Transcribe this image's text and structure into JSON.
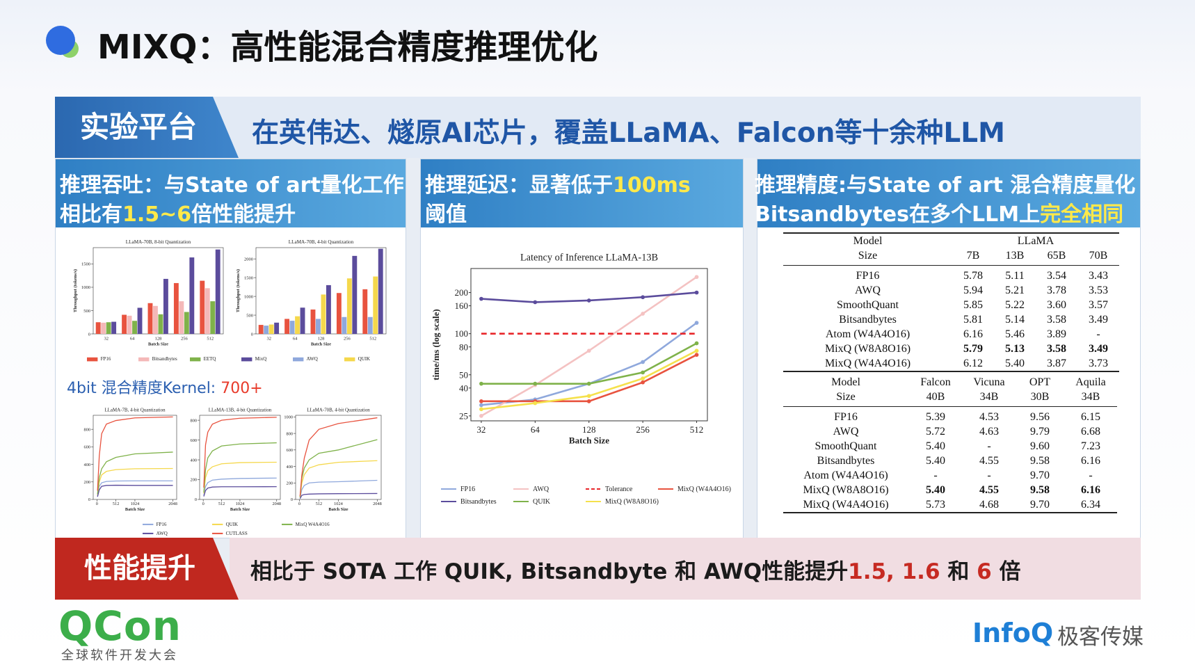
{
  "header": {
    "title": "MIXQ：高性能混合精度推理优化"
  },
  "banner": {
    "label": "实验平台",
    "text": "在英伟达、燧原AI芯片，覆盖LLaMA、Falcon等十余种LLM"
  },
  "panels": [
    {
      "heading": [
        [
          "推理吞吐：与State of art量化工作"
        ],
        [
          "相比有",
          {
            "text": "1.5~6",
            "highlight": true
          },
          "倍性能提升"
        ]
      ],
      "note": [
        "4bit 混合精度Kernel: ",
        {
          "text": "700+",
          "highlight": true
        }
      ]
    },
    {
      "heading": [
        [
          "推理延迟：显著低于",
          {
            "text": "100ms",
            "highlight": true
          }
        ],
        [
          "阈值"
        ]
      ]
    },
    {
      "heading": [
        [
          "推理精度:与State of art 混合精度量化"
        ],
        [
          "Bitsandbytes在多个LLM上",
          {
            "text": "完全相同",
            "highlight": true
          }
        ]
      ]
    }
  ],
  "chart_data": [
    {
      "type": "bar",
      "title": "LLaMA-70B, 8-bit Quantization",
      "x_label": "Batch Size",
      "y_label": "Throughput (tokens/s)",
      "categories": [
        32,
        64,
        128,
        256,
        512
      ],
      "ylim": [
        0,
        1850
      ],
      "yticks": [
        0,
        500,
        1000,
        1500
      ],
      "series": [
        {
          "name": "FP16",
          "color": "#e8533f",
          "values": [
            250,
            410,
            660,
            1090,
            1140
          ]
        },
        {
          "name": "Bitsandbytes",
          "color": "#f4b8b8",
          "values": [
            240,
            390,
            600,
            700,
            980
          ]
        },
        {
          "name": "EETQ",
          "color": "#7fb24a",
          "values": [
            250,
            280,
            420,
            470,
            700
          ]
        },
        {
          "name": "MixQ",
          "color": "#5b4c9c",
          "values": [
            260,
            560,
            1180,
            1640,
            1810
          ]
        }
      ]
    },
    {
      "type": "bar",
      "title": "LLaMA-70B, 4-bit Quantization",
      "x_label": "Batch Size",
      "y_label": "Throughput (tokens/s)",
      "categories": [
        32,
        64,
        128,
        256,
        512
      ],
      "ylim": [
        0,
        2300
      ],
      "yticks": [
        0,
        500,
        1000,
        1500,
        2000
      ],
      "series": [
        {
          "color": "#e8533f",
          "values": [
            240,
            400,
            650,
            1090,
            1190
          ]
        },
        {
          "name": "AWQ",
          "color": "#8fa8dc",
          "values": [
            220,
            350,
            400,
            450,
            450
          ]
        },
        {
          "name": "QUIK",
          "color": "#f5d84c",
          "values": [
            250,
            470,
            1050,
            1480,
            1530
          ]
        },
        {
          "color": "#5b4c9c",
          "values": [
            300,
            700,
            1300,
            2080,
            2270
          ]
        }
      ]
    },
    {
      "type": "line",
      "title": "LLaMA-7B, 4-bit Quantization",
      "x_label": "Batch Size",
      "x": [
        16,
        64,
        128,
        256,
        512,
        1024,
        2048
      ],
      "xlim": [
        -100,
        2150
      ],
      "xticks": [
        0,
        512,
        1024,
        2048
      ],
      "ylim": [
        0,
        960
      ],
      "yticks": [
        0,
        200,
        400,
        600,
        800
      ],
      "series": [
        {
          "name": "FP16",
          "color": "#8fa8dc",
          "values": [
            40,
            150,
            190,
            205,
            210,
            212,
            212
          ]
        },
        {
          "name": "QUIK",
          "color": "#f5d84c",
          "values": [
            50,
            200,
            280,
            320,
            340,
            350,
            353
          ]
        },
        {
          "name": "MixQ W4A4O16",
          "color": "#7fb24a",
          "values": [
            60,
            250,
            350,
            430,
            480,
            520,
            540
          ]
        },
        {
          "name": "AWQ",
          "color": "#5b4c9c",
          "values": [
            30,
            110,
            150,
            160,
            162,
            160,
            160
          ]
        },
        {
          "name": "CUTLASS",
          "color": "#e8533f",
          "values": [
            100,
            500,
            750,
            860,
            900,
            930,
            941
          ]
        }
      ]
    },
    {
      "type": "line",
      "title": "LLaMA-13B, 4-bit Quantization",
      "x_label": "Batch Size",
      "x": [
        16,
        64,
        128,
        256,
        512,
        1024,
        2048
      ],
      "xlim": [
        -100,
        2150
      ],
      "xticks": [
        0,
        512,
        1024,
        2048
      ],
      "ylim": [
        0,
        850
      ],
      "yticks": [
        0,
        200,
        400,
        600,
        800
      ],
      "series": [
        {
          "color": "#8fa8dc",
          "values": [
            40,
            130,
            170,
            195,
            205,
            212,
            216
          ]
        },
        {
          "color": "#f5d84c",
          "values": [
            60,
            220,
            290,
            330,
            360,
            372,
            376
          ]
        },
        {
          "color": "#7fb24a",
          "values": [
            70,
            300,
            420,
            490,
            540,
            560,
            572
          ]
        },
        {
          "color": "#5b4c9c",
          "values": [
            30,
            90,
            115,
            125,
            128,
            128,
            129
          ]
        },
        {
          "color": "#e8533f",
          "values": [
            120,
            550,
            680,
            760,
            800,
            820,
            830
          ]
        }
      ]
    },
    {
      "type": "line",
      "title": "LLaMA-70B, 4-bit Quantization",
      "x_label": "Batch Size",
      "x": [
        16,
        64,
        128,
        256,
        512,
        1024,
        2048
      ],
      "xlim": [
        -100,
        2150
      ],
      "xticks": [
        0,
        512,
        1024,
        2048
      ],
      "ylim": [
        0,
        1020
      ],
      "yticks": [
        0,
        200,
        400,
        600,
        800,
        1000
      ],
      "series": [
        {
          "color": "#8fa8dc",
          "values": [
            20,
            120,
            170,
            200,
            210,
            215,
            232
          ]
        },
        {
          "color": "#f5d84c",
          "values": [
            25,
            200,
            300,
            380,
            420,
            450,
            470
          ]
        },
        {
          "color": "#7fb24a",
          "values": [
            30,
            260,
            380,
            480,
            560,
            600,
            725
          ]
        },
        {
          "color": "#5b4c9c",
          "values": [
            10,
            50,
            60,
            65,
            68,
            70,
            72
          ]
        },
        {
          "color": "#e8533f",
          "values": [
            40,
            300,
            500,
            720,
            850,
            920,
            990
          ]
        }
      ]
    },
    {
      "type": "line",
      "title": "Latency of Inference LLaMA-13B",
      "x_label": "Batch Size",
      "y_label": "time/ms (log scale)",
      "x": [
        32,
        64,
        128,
        256,
        512
      ],
      "xscale": "log",
      "xlim": [
        28,
        588
      ],
      "xticks": [
        32,
        64,
        128,
        256,
        512
      ],
      "yscale": "log",
      "ylim": [
        23,
        300
      ],
      "yticks": [
        25,
        40,
        50,
        80,
        100,
        160,
        200
      ],
      "markers": true,
      "series": [
        {
          "name": "FP16",
          "color": "#8fa8dc",
          "values": [
            30,
            33,
            43,
            62,
            120
          ]
        },
        {
          "name": "AWQ",
          "color": "#f4c2c2",
          "values": [
            25,
            42,
            75,
            140,
            260
          ]
        },
        {
          "name": "Tolerance",
          "color": "#e8262a",
          "dashed": true,
          "values": [
            100,
            100,
            100,
            100,
            100
          ]
        },
        {
          "name": "MixQ (W4A4O16)",
          "color": "#e8533f",
          "values": [
            32,
            32,
            32,
            44,
            70
          ]
        },
        {
          "name": "Bitsandbytes",
          "color": "#5b4c9c",
          "values": [
            180,
            170,
            175,
            185,
            200
          ]
        },
        {
          "name": "QUIK",
          "color": "#7fb24a",
          "values": [
            43,
            43,
            43,
            52,
            85
          ]
        },
        {
          "name": "MixQ (W8A8O16)",
          "color": "#f5e14c",
          "values": [
            28,
            31,
            35,
            47,
            75
          ]
        }
      ]
    }
  ],
  "tables": [
    {
      "header": {
        "model": "Model",
        "size": "Size",
        "group": "LLaMA",
        "columns": [
          "7B",
          "13B",
          "65B",
          "70B"
        ]
      },
      "bold_rows": [
        5
      ],
      "rows": [
        [
          "FP16",
          "5.78",
          "5.11",
          "3.54",
          "3.43"
        ],
        [
          "AWQ",
          "5.94",
          "5.21",
          "3.78",
          "3.53"
        ],
        [
          "SmoothQuant",
          "5.85",
          "5.22",
          "3.60",
          "3.57"
        ],
        [
          "Bitsandbytes",
          "5.81",
          "5.14",
          "3.58",
          "3.49"
        ],
        [
          "Atom (W4A4O16)",
          "6.16",
          "5.46",
          "3.89",
          "-"
        ],
        [
          "MixQ (W8A8O16)",
          "5.79",
          "5.13",
          "3.58",
          "3.49"
        ],
        [
          "MixQ (W4A4O16)",
          "6.12",
          "5.40",
          "3.87",
          "3.73"
        ]
      ]
    },
    {
      "header": {
        "model": "Model",
        "size": "Size",
        "columns": [
          [
            "Falcon",
            "40B"
          ],
          [
            "Vicuna",
            "34B"
          ],
          [
            "OPT",
            "30B"
          ],
          [
            "Aquila",
            "34B"
          ]
        ]
      },
      "bold_rows": [
        5
      ],
      "rows": [
        [
          "FP16",
          "5.39",
          "4.53",
          "9.56",
          "6.15"
        ],
        [
          "AWQ",
          "5.72",
          "4.63",
          "9.79",
          "6.68"
        ],
        [
          "SmoothQuant",
          "5.40",
          "-",
          "9.60",
          "7.23"
        ],
        [
          "Bitsandbytes",
          "5.40",
          "4.55",
          "9.58",
          "6.16"
        ],
        [
          "Atom (W4A4O16)",
          "-",
          "-",
          "9.70",
          "-"
        ],
        [
          "MixQ (W8A8O16)",
          "5.40",
          "4.55",
          "9.58",
          "6.16"
        ],
        [
          "MixQ (W4A4O16)",
          "5.73",
          "4.68",
          "9.70",
          "6.34"
        ]
      ]
    }
  ],
  "summary": {
    "label": "性能提升",
    "text": [
      "相比于 SOTA 工作 QUIK, Bitsandbyte 和 AWQ性能提升",
      {
        "text": "1.5, 1.6",
        "highlight": true
      },
      " 和 ",
      {
        "text": "6",
        "highlight": true
      },
      " 倍"
    ]
  },
  "footer": {
    "brand": "QCon",
    "brand_sub": "全球软件开发大会",
    "partner": "InfoQ",
    "partner_sub": "极客传媒"
  }
}
